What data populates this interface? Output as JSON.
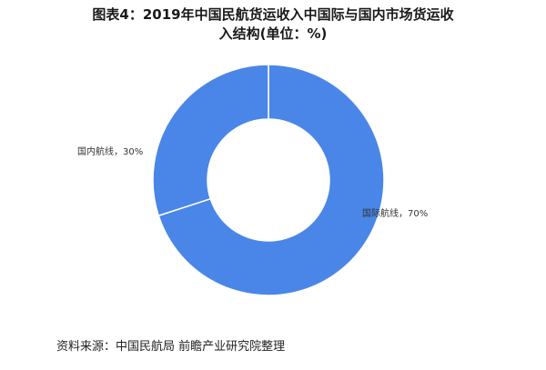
{
  "title_line1": "图表4：2019年中国民航货运收入中国际与国内市场货运收",
  "title_line2": "入结构(单位：%)",
  "source": "资料来源：中国民航局 前瞻产业研究院整理",
  "colors": {
    "primary": "#4a86e8",
    "divider": "#ffffff"
  },
  "chart_data": {
    "type": "pie",
    "title": "图表4：2019年中国民航货运收入中国际与国内市场货运收入结构(单位：%)",
    "variant": "donut",
    "start_angle_deg": 0,
    "direction": "clockwise",
    "slices": [
      {
        "name": "国际航线",
        "value": 70,
        "label": "国际航线，70%"
      },
      {
        "name": "国内航线",
        "value": 30,
        "label": "国内航线，30%"
      }
    ]
  }
}
